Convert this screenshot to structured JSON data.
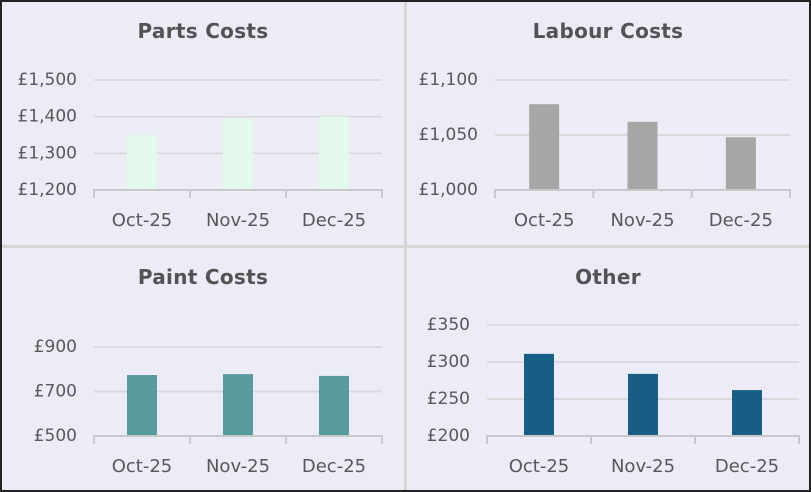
{
  "page": {
    "background_color": "#ebecf5",
    "divider_color": "#d5d5d6",
    "border_color": "#232323",
    "gridline_color": "#d9d9db",
    "axis_color": "#c9c8ca",
    "label_color": "#58585a",
    "title_color": "#535355"
  },
  "chart_data": [
    {
      "type": "bar",
      "title": "Parts Costs",
      "categories": [
        "Oct-25",
        "Nov-25",
        "Dec-25"
      ],
      "values": [
        1350,
        1395,
        1400
      ],
      "ylim": [
        1200,
        1500
      ],
      "yticks": [
        {
          "value": 1200,
          "label": "£1,200"
        },
        {
          "value": 1300,
          "label": "£1,300"
        },
        {
          "value": 1400,
          "label": "£1,400"
        },
        {
          "value": 1500,
          "label": "£1,500"
        }
      ],
      "bar_color": "#e3f9ec",
      "grid": true,
      "legend": "none",
      "xlabel": "",
      "ylabel": ""
    },
    {
      "type": "bar",
      "title": "Labour Costs",
      "categories": [
        "Oct-25",
        "Nov-25",
        "Dec-25"
      ],
      "values": [
        1078,
        1062,
        1048
      ],
      "ylim": [
        1000,
        1100
      ],
      "yticks": [
        {
          "value": 1000,
          "label": "£1,000"
        },
        {
          "value": 1050,
          "label": "£1,050"
        },
        {
          "value": 1100,
          "label": "£1,100"
        }
      ],
      "bar_color": "#a6a6a6",
      "grid": true,
      "legend": "none",
      "xlabel": "",
      "ylabel": ""
    },
    {
      "type": "bar",
      "title": "Paint Costs",
      "categories": [
        "Oct-25",
        "Nov-25",
        "Dec-25"
      ],
      "values": [
        774,
        778,
        770
      ],
      "ylim": [
        500,
        900
      ],
      "yticks": [
        {
          "value": 500,
          "label": "£500"
        },
        {
          "value": 700,
          "label": "£700"
        },
        {
          "value": 900,
          "label": "£900"
        }
      ],
      "bar_color": "#579b9f",
      "grid": true,
      "legend": "none",
      "xlabel": "",
      "ylabel": ""
    },
    {
      "type": "bar",
      "title": "Other",
      "categories": [
        "Oct-25",
        "Nov-25",
        "Dec-25"
      ],
      "values": [
        311,
        284,
        262
      ],
      "ylim": [
        200,
        350
      ],
      "yticks": [
        {
          "value": 200,
          "label": "£200"
        },
        {
          "value": 250,
          "label": "£250"
        },
        {
          "value": 300,
          "label": "£300"
        },
        {
          "value": 350,
          "label": "£350"
        }
      ],
      "bar_color": "#165e84",
      "grid": true,
      "legend": "none",
      "xlabel": "",
      "ylabel": ""
    }
  ]
}
